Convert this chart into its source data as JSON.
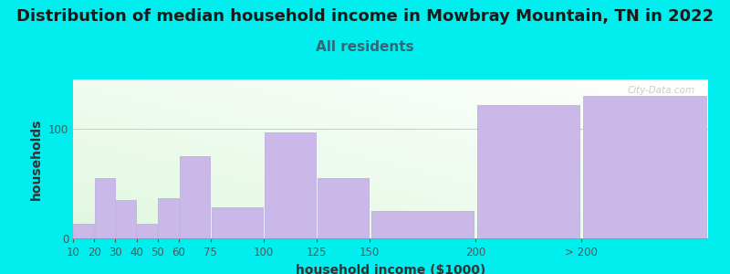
{
  "title": "Distribution of median household income in Mowbray Mountain, TN in 2022",
  "subtitle": "All residents",
  "xlabel": "household income ($1000)",
  "ylabel": "households",
  "background_outer": "#00EEEE",
  "bar_color": "#c9b8e8",
  "bar_edge_color": "#b8a8dc",
  "watermark": "City-Data.com",
  "categories": [
    "10",
    "20",
    "30",
    "40",
    "50",
    "60",
    "75",
    "100",
    "125",
    "150",
    "200",
    "> 200"
  ],
  "values": [
    13,
    55,
    35,
    13,
    37,
    75,
    28,
    97,
    55,
    25,
    122,
    130
  ],
  "bar_lefts": [
    10,
    20,
    30,
    40,
    50,
    60,
    75,
    100,
    125,
    150,
    200,
    250
  ],
  "bar_widths": [
    10,
    10,
    10,
    10,
    10,
    15,
    25,
    25,
    25,
    50,
    50,
    60
  ],
  "xtick_positions": [
    10,
    20,
    30,
    40,
    50,
    60,
    75,
    100,
    125,
    150,
    200,
    250
  ],
  "xlim": [
    10,
    310
  ],
  "ylim": [
    0,
    145
  ],
  "yticks": [
    0,
    100
  ],
  "title_fontsize": 13,
  "subtitle_fontsize": 11,
  "axis_label_fontsize": 10,
  "tick_fontsize": 8.5
}
